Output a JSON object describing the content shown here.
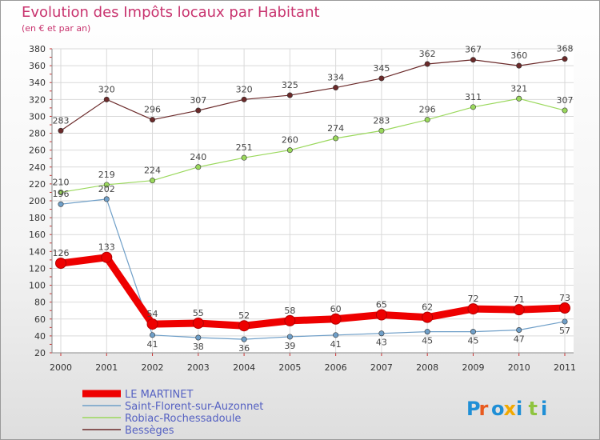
{
  "chart_data": {
    "type": "line",
    "title": "Evolution des Impôts locaux par Habitant",
    "subtitle": "(en € et par an)",
    "x": [
      "2000",
      "2001",
      "2002",
      "2003",
      "2004",
      "2005",
      "2006",
      "2007",
      "2008",
      "2009",
      "2010",
      "2011"
    ],
    "y_ticks": [
      20,
      40,
      60,
      80,
      100,
      120,
      140,
      160,
      180,
      200,
      220,
      240,
      260,
      280,
      300,
      320,
      340,
      360,
      380
    ],
    "ylim": [
      20,
      380
    ],
    "grid": true,
    "legend_position": "bottom-left",
    "series": [
      {
        "name": "LE MARTINET",
        "color": "#ee0000",
        "values": [
          126,
          133,
          54,
          55,
          52,
          58,
          60,
          65,
          62,
          72,
          71,
          73
        ]
      },
      {
        "name": "Saint-Florent-sur-Auzonnet",
        "color": "#6f9fc8",
        "values": [
          196,
          202,
          41,
          38,
          36,
          39,
          41,
          43,
          45,
          45,
          47,
          57
        ]
      },
      {
        "name": "Robiac-Rochessadoule",
        "color": "#9ad85c",
        "values": [
          210,
          219,
          224,
          240,
          251,
          260,
          274,
          283,
          296,
          311,
          321,
          307
        ]
      },
      {
        "name": "Bessèges",
        "color": "#6b2a2a",
        "values": [
          283,
          320,
          296,
          307,
          320,
          325,
          334,
          345,
          362,
          367,
          360,
          368
        ]
      }
    ]
  },
  "logo": {
    "text": "Proxiti",
    "colors": [
      "#1f8fd6",
      "#e85a1e",
      "#1f8fd6",
      "#f2a900",
      "#1f8fd6",
      "#8fc43f",
      "#1f8fd6"
    ]
  }
}
